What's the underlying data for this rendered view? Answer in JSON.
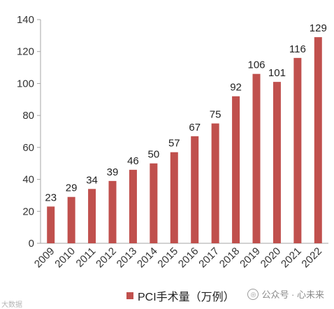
{
  "chart_data": {
    "type": "bar",
    "categories": [
      "2009",
      "2010",
      "2011",
      "2012",
      "2013",
      "2014",
      "2015",
      "2016",
      "2017",
      "2018",
      "2019",
      "2020",
      "2021",
      "2022"
    ],
    "series": [
      {
        "name": "PCI手术量（万例）",
        "values": [
          23,
          29,
          34,
          39,
          46,
          50,
          57,
          67,
          75,
          92,
          106,
          101,
          116,
          129
        ]
      }
    ],
    "ylim": [
      0,
      140
    ],
    "yticks": [
      0,
      20,
      40,
      60,
      80,
      100,
      120,
      140
    ],
    "title": "",
    "xlabel": "",
    "ylabel": "",
    "grid": false,
    "legend_position": "bottom",
    "bar_color": "#c0504d",
    "axis_color": "#a6a6a6"
  },
  "watermark": {
    "text": "公众号 · 心未来"
  },
  "corner_logo": {
    "text": "大数据"
  }
}
